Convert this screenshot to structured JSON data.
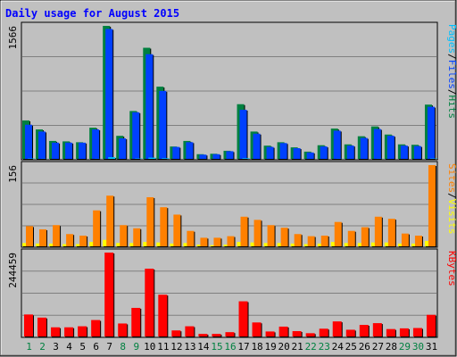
{
  "chart_data": {
    "type": "bar",
    "title": "Daily usage for August 2015",
    "categories": [
      "1",
      "2",
      "3",
      "4",
      "5",
      "6",
      "7",
      "8",
      "9",
      "10",
      "11",
      "12",
      "13",
      "14",
      "15",
      "16",
      "17",
      "18",
      "19",
      "20",
      "21",
      "22",
      "23",
      "24",
      "25",
      "26",
      "27",
      "28",
      "29",
      "30",
      "31"
    ],
    "weekend_days": [
      "1",
      "2",
      "8",
      "9",
      "15",
      "16",
      "22",
      "23",
      "29",
      "30"
    ],
    "panels": [
      {
        "id": "hits_files_pages",
        "scale_max_label": "1566",
        "ylim": [
          0,
          1566
        ],
        "series": [
          {
            "name": "Hits",
            "color": "#008040",
            "values": [
              460,
              355,
              220,
              215,
              205,
              375,
              1566,
              280,
              570,
              1310,
              855,
              155,
              220,
              65,
              70,
              105,
              650,
              330,
              165,
              205,
              145,
              95,
              170,
              365,
              180,
              275,
              390,
              295,
              180,
              175,
              645
            ]
          },
          {
            "name": "Files",
            "color": "#0040ff",
            "values": [
              410,
              330,
              200,
              200,
              200,
              355,
              1530,
              250,
              555,
              1235,
              805,
              150,
              205,
              60,
              65,
              100,
              585,
              305,
              150,
              195,
              135,
              85,
              155,
              340,
              165,
              255,
              360,
              280,
              165,
              160,
              620
            ]
          },
          {
            "name": "Pages",
            "color": "#00c0ff",
            "values": [
              15,
              12,
              8,
              8,
              8,
              12,
              30,
              10,
              15,
              25,
              18,
              6,
              8,
              3,
              3,
              4,
              18,
              10,
              6,
              8,
              6,
              4,
              6,
              12,
              6,
              9,
              12,
              10,
              6,
              6,
              15
            ]
          }
        ]
      },
      {
        "id": "sites_visits",
        "scale_max_label": "156",
        "ylim": [
          0,
          156
        ],
        "series": [
          {
            "name": "Visits",
            "color": "#ffff00",
            "values": [
              8,
              7,
              7,
              6,
              6,
              10,
              14,
              8,
              8,
              10,
              9,
              7,
              8,
              5,
              4,
              5,
              10,
              9,
              8,
              8,
              7,
              6,
              7,
              10,
              8,
              8,
              9,
              9,
              7,
              7,
              12
            ]
          },
          {
            "name": "Sites",
            "color": "#ff8000",
            "values": [
              40,
              34,
              42,
              25,
              22,
              70,
              98,
              42,
              36,
              95,
              76,
              62,
              31,
              18,
              18,
              21,
              58,
              52,
              42,
              37,
              25,
              21,
              22,
              48,
              31,
              38,
              58,
              54,
              26,
              22,
              156
            ]
          }
        ]
      },
      {
        "id": "kbytes",
        "scale_max_label": "244459",
        "ylim": [
          0,
          244459
        ],
        "series": [
          {
            "name": "KBytes",
            "color": "#ff0000",
            "values": [
              66000,
              57000,
              29000,
              29000,
              32000,
              50000,
              244459,
              40000,
              85000,
              198000,
              123000,
              20000,
              32000,
              10000,
              10000,
              15000,
              104000,
              43000,
              17000,
              31000,
              18000,
              12000,
              25000,
              46000,
              22000,
              36000,
              41000,
              24000,
              26000,
              27000,
              65000
            ]
          }
        ]
      }
    ],
    "side_legends": [
      {
        "panel": "hits_files_pages",
        "parts": [
          {
            "text": "Pages",
            "color": "#00c0ff"
          },
          {
            "text": "/",
            "color": "#000000"
          },
          {
            "text": "Files",
            "color": "#0040ff"
          },
          {
            "text": "/",
            "color": "#000000"
          },
          {
            "text": "Hits",
            "color": "#008040"
          }
        ]
      },
      {
        "panel": "sites_visits",
        "parts": [
          {
            "text": "Sites",
            "color": "#ff8000"
          },
          {
            "text": "/",
            "color": "#000000"
          },
          {
            "text": "Visits",
            "color": "#ffff00"
          }
        ]
      },
      {
        "panel": "kbytes",
        "parts": [
          {
            "text": "KBytes",
            "color": "#ff0000"
          }
        ]
      }
    ],
    "colors": {
      "background": "#c0c0c0",
      "title": "#0000ff",
      "weekday_label": "#000000",
      "weekend_label": "#008040",
      "grid": "#808080"
    }
  }
}
